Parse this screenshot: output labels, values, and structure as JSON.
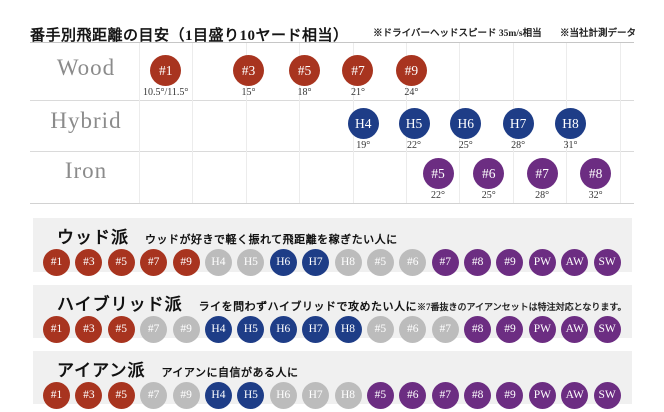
{
  "header": {
    "title": "番手別飛距離の目安（1目盛り10ヤード相当）",
    "note1": "※ドライバーヘッドスピード 35m/s相当",
    "note2": "※当社計測データ"
  },
  "colors": {
    "wood": "#a8341f",
    "hybrid": "#1e3d87",
    "iron": "#6c2d82",
    "inactive": "#bcbcbc"
  },
  "chart_data": {
    "type": "scatter",
    "title": "番手別飛距離の目安（1目盛り10ヤード相当）",
    "notes": [
      "※ドライバーヘッドスピード 35m/s相当",
      "※当社計測データ"
    ],
    "x_axis": {
      "unit": "ヤード",
      "gridline_interval_yards": 10,
      "gridline_count": 10,
      "grid": true
    },
    "series": [
      {
        "name": "Wood",
        "color_key": "wood",
        "points": [
          {
            "club": "#1",
            "loft": "10.5°/11.5°",
            "x_gridlines": 0.5
          },
          {
            "club": "#3",
            "loft": "15°",
            "x_gridlines": 2.05
          },
          {
            "club": "#5",
            "loft": "18°",
            "x_gridlines": 3.1
          },
          {
            "club": "#7",
            "loft": "21°",
            "x_gridlines": 4.1
          },
          {
            "club": "#9",
            "loft": "24°",
            "x_gridlines": 5.1
          }
        ]
      },
      {
        "name": "Hybrid",
        "color_key": "hybrid",
        "points": [
          {
            "club": "H4",
            "loft": "19°",
            "x_gridlines": 4.2
          },
          {
            "club": "H5",
            "loft": "22°",
            "x_gridlines": 5.15
          },
          {
            "club": "H6",
            "loft": "25°",
            "x_gridlines": 6.12
          },
          {
            "club": "H7",
            "loft": "28°",
            "x_gridlines": 7.1
          },
          {
            "club": "H8",
            "loft": "31°",
            "x_gridlines": 8.08
          }
        ]
      },
      {
        "name": "Iron",
        "color_key": "iron",
        "points": [
          {
            "club": "#5",
            "loft": "22°",
            "x_gridlines": 5.6
          },
          {
            "club": "#6",
            "loft": "25°",
            "x_gridlines": 6.55
          },
          {
            "club": "#7",
            "loft": "28°",
            "x_gridlines": 7.55
          },
          {
            "club": "#8",
            "loft": "32°",
            "x_gridlines": 8.55
          }
        ]
      }
    ]
  },
  "sections": [
    {
      "id": "wood-fan",
      "title": "ウッド派",
      "desc": "ウッドが好きで軽く振れて飛距離を稼ぎたい人に",
      "note": "",
      "clubs": [
        {
          "label": "#1",
          "type": "wood"
        },
        {
          "label": "#3",
          "type": "wood"
        },
        {
          "label": "#5",
          "type": "wood"
        },
        {
          "label": "#7",
          "type": "wood"
        },
        {
          "label": "#9",
          "type": "wood"
        },
        {
          "label": "H4",
          "type": "inactive"
        },
        {
          "label": "H5",
          "type": "inactive"
        },
        {
          "label": "H6",
          "type": "hybrid"
        },
        {
          "label": "H7",
          "type": "hybrid"
        },
        {
          "label": "H8",
          "type": "inactive"
        },
        {
          "label": "#5",
          "type": "inactive"
        },
        {
          "label": "#6",
          "type": "inactive"
        },
        {
          "label": "#7",
          "type": "iron"
        },
        {
          "label": "#8",
          "type": "iron"
        },
        {
          "label": "#9",
          "type": "iron"
        },
        {
          "label": "PW",
          "type": "iron"
        },
        {
          "label": "AW",
          "type": "iron"
        },
        {
          "label": "SW",
          "type": "iron"
        }
      ]
    },
    {
      "id": "hybrid-fan",
      "title": "ハイブリッド派",
      "desc": "ライを問わずハイブリッドで攻めたい人に",
      "note": "※7番抜きのアイアンセットは特注対応となります。",
      "clubs": [
        {
          "label": "#1",
          "type": "wood"
        },
        {
          "label": "#3",
          "type": "wood"
        },
        {
          "label": "#5",
          "type": "wood"
        },
        {
          "label": "#7",
          "type": "inactive"
        },
        {
          "label": "#9",
          "type": "inactive"
        },
        {
          "label": "H4",
          "type": "hybrid"
        },
        {
          "label": "H5",
          "type": "hybrid"
        },
        {
          "label": "H6",
          "type": "hybrid"
        },
        {
          "label": "H7",
          "type": "hybrid"
        },
        {
          "label": "H8",
          "type": "hybrid"
        },
        {
          "label": "#5",
          "type": "inactive"
        },
        {
          "label": "#6",
          "type": "inactive"
        },
        {
          "label": "#7",
          "type": "inactive"
        },
        {
          "label": "#8",
          "type": "iron"
        },
        {
          "label": "#9",
          "type": "iron"
        },
        {
          "label": "PW",
          "type": "iron"
        },
        {
          "label": "AW",
          "type": "iron"
        },
        {
          "label": "SW",
          "type": "iron"
        }
      ]
    },
    {
      "id": "iron-fan",
      "title": "アイアン派",
      "desc": "アイアンに自信がある人に",
      "note": "",
      "clubs": [
        {
          "label": "#1",
          "type": "wood"
        },
        {
          "label": "#3",
          "type": "wood"
        },
        {
          "label": "#5",
          "type": "wood"
        },
        {
          "label": "#7",
          "type": "inactive"
        },
        {
          "label": "#9",
          "type": "inactive"
        },
        {
          "label": "H4",
          "type": "hybrid"
        },
        {
          "label": "H5",
          "type": "hybrid"
        },
        {
          "label": "H6",
          "type": "inactive"
        },
        {
          "label": "H7",
          "type": "inactive"
        },
        {
          "label": "H8",
          "type": "inactive"
        },
        {
          "label": "#5",
          "type": "iron"
        },
        {
          "label": "#6",
          "type": "iron"
        },
        {
          "label": "#7",
          "type": "iron"
        },
        {
          "label": "#8",
          "type": "iron"
        },
        {
          "label": "#9",
          "type": "iron"
        },
        {
          "label": "PW",
          "type": "iron"
        },
        {
          "label": "AW",
          "type": "iron"
        },
        {
          "label": "SW",
          "type": "iron"
        }
      ]
    }
  ]
}
